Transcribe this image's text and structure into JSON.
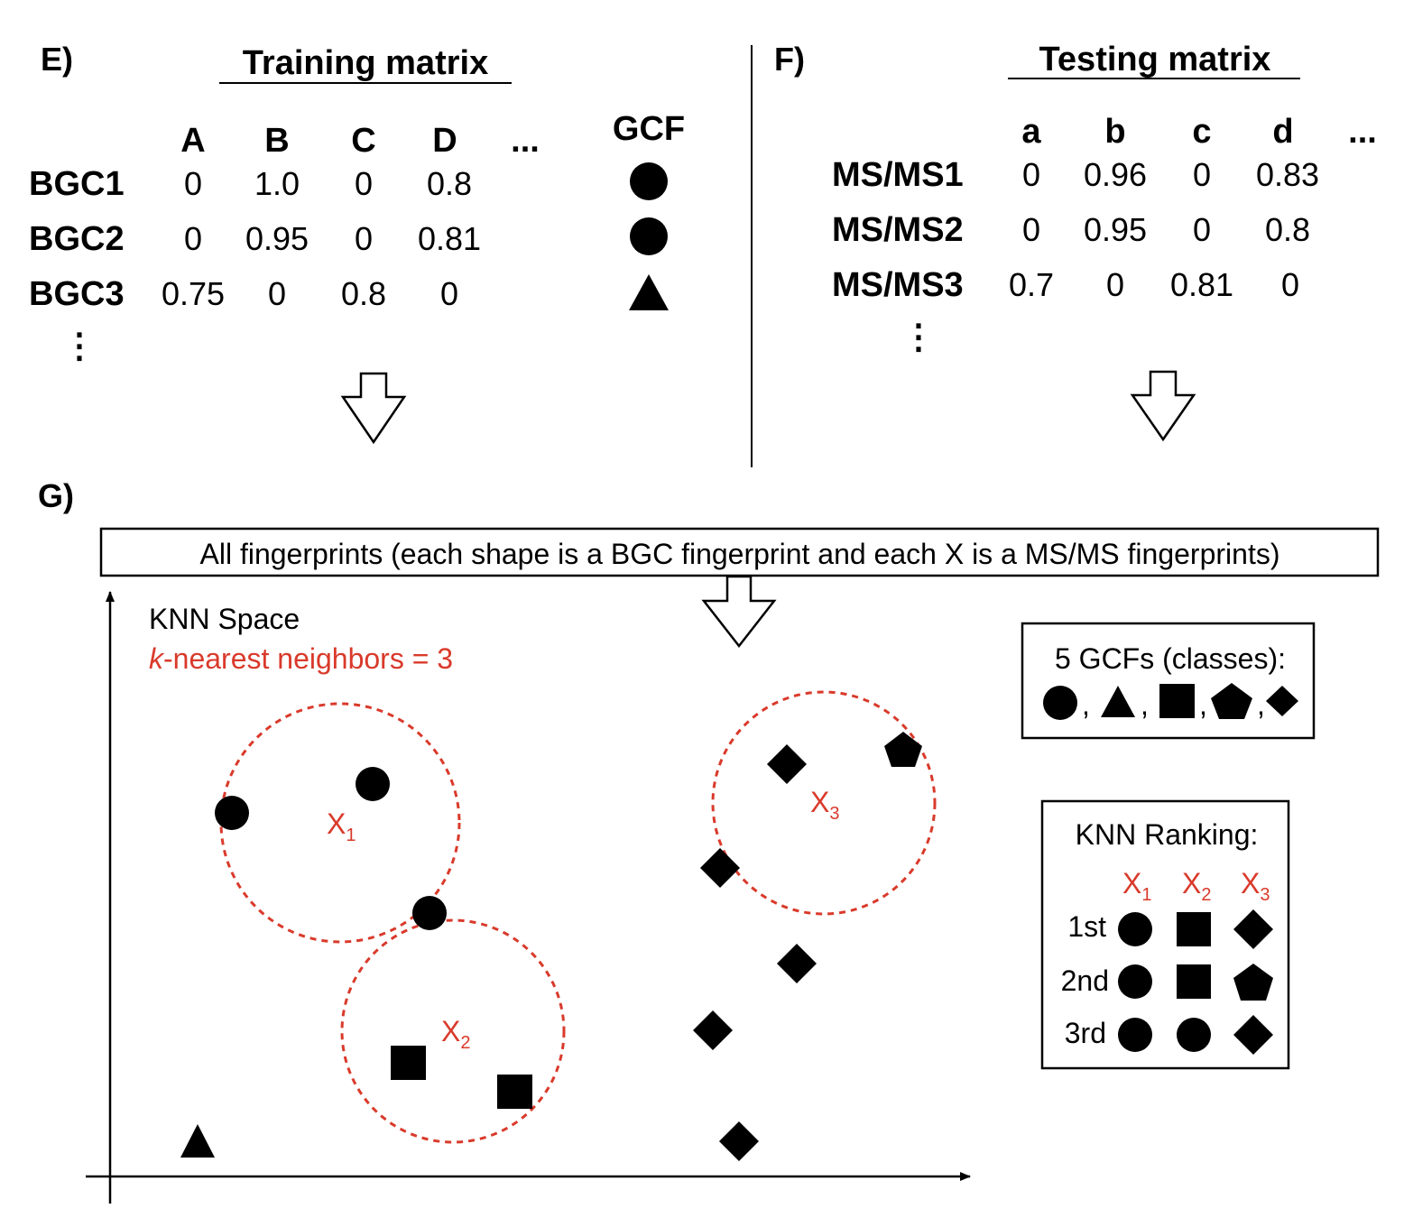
{
  "panels": {
    "E": {
      "label": "E)",
      "title": "Training matrix",
      "columns": [
        "A",
        "B",
        "C",
        "D",
        "..."
      ],
      "gcf_header": "GCF",
      "rows": [
        {
          "label": "BGC1",
          "values": [
            "0",
            "1.0",
            "0",
            "0.8"
          ],
          "gcf_shape": "circle-icon"
        },
        {
          "label": "BGC2",
          "values": [
            "0",
            "0.95",
            "0",
            "0.81"
          ],
          "gcf_shape": "circle-icon"
        },
        {
          "label": "BGC3",
          "values": [
            "0.75",
            "0",
            "0.8",
            "0"
          ],
          "gcf_shape": "triangle-icon"
        }
      ],
      "more_rows": "⋮"
    },
    "F": {
      "label": "F)",
      "title": "Testing matrix",
      "columns": [
        "a",
        "b",
        "c",
        "d",
        "..."
      ],
      "rows": [
        {
          "label": "MS/MS1",
          "values": [
            "0",
            "0.96",
            "0",
            "0.83"
          ]
        },
        {
          "label": "MS/MS2",
          "values": [
            "0",
            "0.95",
            "0",
            "0.8"
          ]
        },
        {
          "label": "MS/MS3",
          "values": [
            "0.7",
            "0",
            "0.81",
            "0"
          ]
        }
      ],
      "more_rows": "⋮"
    },
    "G": {
      "label": "G)",
      "fingerprints_caption": "All fingerprints (each shape is a BGC fingerprint and each X is a MS/MS fingerprints)",
      "space_title": "KNN Space",
      "k_italic": "k",
      "k_rest": "-nearest neighbors = 3",
      "queries": [
        {
          "base": "X",
          "sub": "1"
        },
        {
          "base": "X",
          "sub": "2"
        },
        {
          "base": "X",
          "sub": "3"
        }
      ],
      "legend": {
        "title": "5 GCFs (classes):",
        "separator": ",",
        "shapes": [
          "circle-icon",
          "triangle-icon",
          "square-icon",
          "pentagon-icon",
          "diamond-icon"
        ]
      },
      "ranking": {
        "title": "KNN Ranking:",
        "headers": [
          {
            "base": "X",
            "sub": "1"
          },
          {
            "base": "X",
            "sub": "2"
          },
          {
            "base": "X",
            "sub": "3"
          }
        ],
        "rows": [
          {
            "rank": "1st",
            "shapes": [
              "circle-icon",
              "square-icon",
              "diamond-icon"
            ]
          },
          {
            "rank": "2nd",
            "shapes": [
              "circle-icon",
              "square-icon",
              "pentagon-icon"
            ]
          },
          {
            "rank": "3rd",
            "shapes": [
              "circle-icon",
              "circle-icon",
              "diamond-icon"
            ]
          }
        ]
      }
    }
  },
  "colors": {
    "accent_red": "#d93a2b",
    "ink": "#000000"
  }
}
